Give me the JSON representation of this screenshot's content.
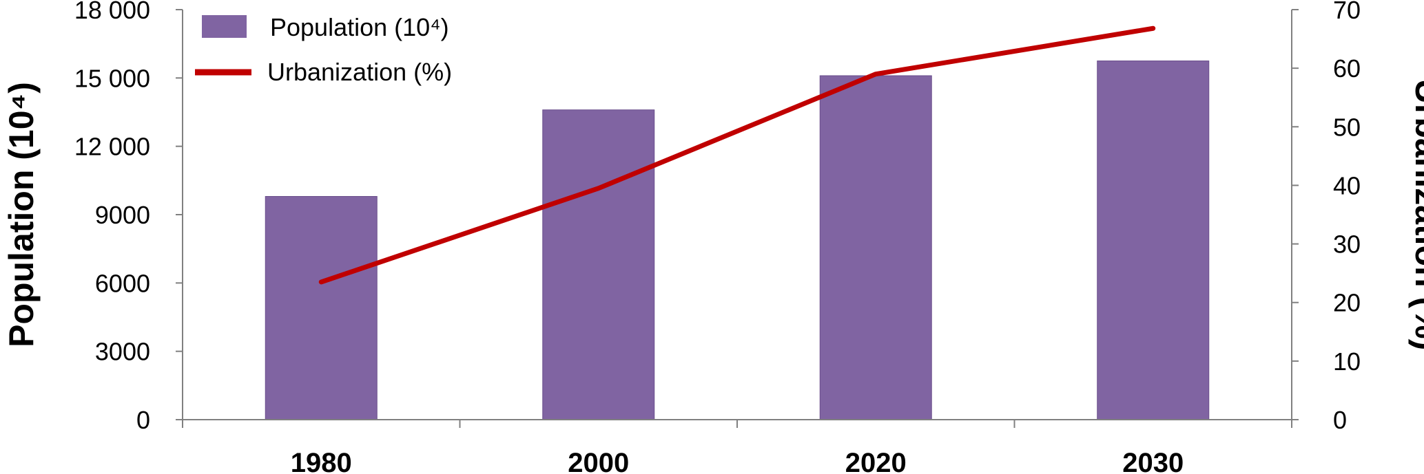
{
  "chart_data": {
    "type": "bar",
    "categories": [
      "1980",
      "2000",
      "2020",
      "2030"
    ],
    "series": [
      {
        "name": "Population (10⁴)",
        "type": "bar",
        "axis": "left",
        "color": "#8064A2",
        "values": [
          9800,
          13600,
          15100,
          15750
        ]
      },
      {
        "name": "Urbanization (%)",
        "type": "line",
        "axis": "right",
        "color": "#C00000",
        "values": [
          23.5,
          39.5,
          59,
          66.8
        ]
      }
    ],
    "ylabel_left": "Population (10⁴)",
    "ylabel_right": "Urbanization (%)",
    "ylim_left": [
      0,
      18000
    ],
    "ylim_right": [
      0,
      70
    ],
    "yticks_left": [
      "0",
      "3000",
      "6000",
      "9000",
      "12 000",
      "15 000",
      "18 000"
    ],
    "yticks_right": [
      "0",
      "10",
      "20",
      "30",
      "40",
      "50",
      "60",
      "70"
    ],
    "legend": {
      "position": "top-left",
      "entries": [
        "Population (10⁴)",
        "Urbanization (%)"
      ]
    },
    "grid": false
  }
}
